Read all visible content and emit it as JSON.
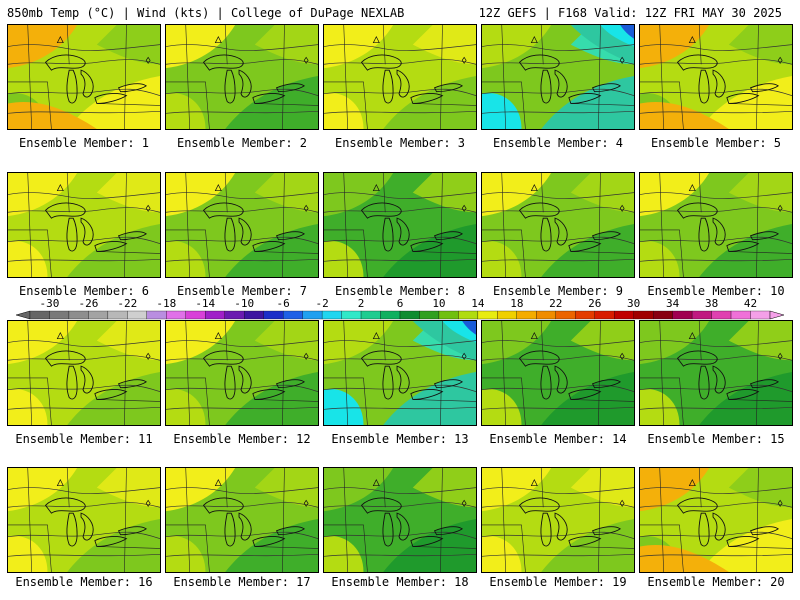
{
  "header": {
    "left": "850mb Temp (°C) | Wind (kts) | College of DuPage NEXLAB",
    "right": "12Z GEFS | F168 Valid: 12Z FRI MAY 30 2025"
  },
  "members": [
    {
      "label": "Ensemble Member: 1",
      "style": "warmsw"
    },
    {
      "label": "Ensemble Member: 2",
      "style": "mix"
    },
    {
      "label": "Ensemble Member: 3",
      "style": "warm"
    },
    {
      "label": "Ensemble Member: 4",
      "style": "coolne"
    },
    {
      "label": "Ensemble Member: 5",
      "style": "warmsw"
    },
    {
      "label": "Ensemble Member: 6",
      "style": "warm"
    },
    {
      "label": "Ensemble Member: 7",
      "style": "mix"
    },
    {
      "label": "Ensemble Member: 8",
      "style": "cool"
    },
    {
      "label": "Ensemble Member: 9",
      "style": "mix"
    },
    {
      "label": "Ensemble Member: 10",
      "style": "mix"
    },
    {
      "label": "Ensemble Member: 11",
      "style": "warm"
    },
    {
      "label": "Ensemble Member: 12",
      "style": "mix"
    },
    {
      "label": "Ensemble Member: 13",
      "style": "coolne"
    },
    {
      "label": "Ensemble Member: 14",
      "style": "cool"
    },
    {
      "label": "Ensemble Member: 15",
      "style": "cool"
    },
    {
      "label": "Ensemble Member: 16",
      "style": "warm"
    },
    {
      "label": "Ensemble Member: 17",
      "style": "mix"
    },
    {
      "label": "Ensemble Member: 18",
      "style": "cool"
    },
    {
      "label": "Ensemble Member: 19",
      "style": "warm"
    },
    {
      "label": "Ensemble Member: 20",
      "style": "warmsw"
    }
  ],
  "colorbar": {
    "ticks": [
      "-30",
      "-26",
      "-22",
      "-18",
      "-14",
      "-10",
      "-6",
      "-2",
      "2",
      "6",
      "10",
      "14",
      "18",
      "22",
      "26",
      "30",
      "34",
      "38",
      "42"
    ],
    "colors": [
      "#666666",
      "#7a7a7a",
      "#8e8e8e",
      "#a3a3a3",
      "#b8b8b8",
      "#cfcfcf",
      "#b98ee0",
      "#e070e8",
      "#d840d8",
      "#a020c8",
      "#6a1ab0",
      "#3c14a0",
      "#1a2ec8",
      "#1e60e6",
      "#20a0f0",
      "#20d6f0",
      "#30e8c8",
      "#20cc90",
      "#10b060",
      "#108c30",
      "#30a020",
      "#70c010",
      "#b0dc10",
      "#e8ec10",
      "#f0d000",
      "#f4ac00",
      "#f08c00",
      "#ec6400",
      "#e43c00",
      "#d81c00",
      "#c00000",
      "#a00000",
      "#880010",
      "#a00050",
      "#c01880",
      "#e040b0",
      "#f070d8",
      "#f4a0e8"
    ]
  },
  "palette": {
    "green_dark": "#1f9a2c",
    "green": "#3fae2a",
    "green_light": "#7ec81e",
    "yellow_green": "#b4dc12",
    "yellow": "#f2ee1a",
    "orange": "#f4b00a",
    "teal": "#2ec7a0",
    "cyan": "#18e4e8",
    "blue": "#1a5cd8"
  }
}
